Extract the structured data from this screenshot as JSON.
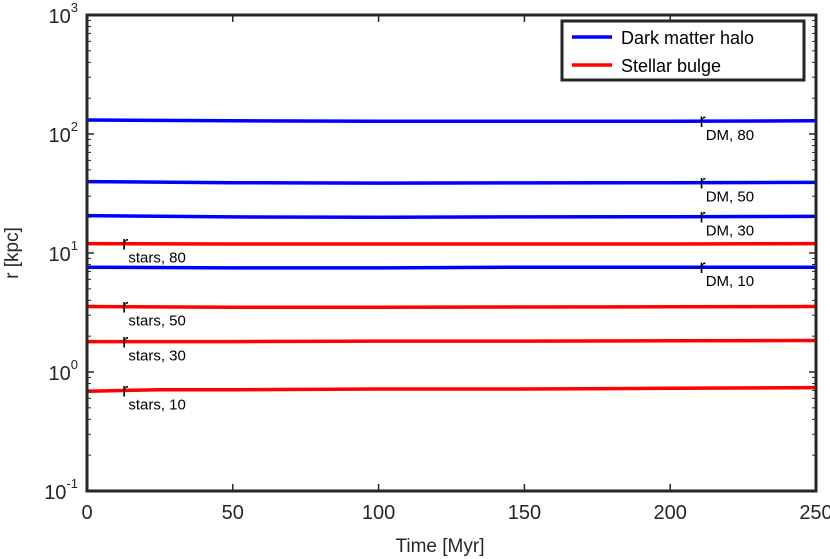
{
  "chart_data": {
    "type": "line",
    "xlabel": "Time [Myr]",
    "ylabel": "r [kpc]",
    "xlim": [
      0,
      250
    ],
    "ylim": [
      0.1,
      1000
    ],
    "yscale": "log",
    "grid": false,
    "legend_placement": "top-right",
    "x_ticks": [
      0,
      50,
      100,
      150,
      200,
      250
    ],
    "y_ticks": [
      {
        "base": "10",
        "exp": "-1",
        "value": 0.1
      },
      {
        "base": "10",
        "exp": "0",
        "value": 1
      },
      {
        "base": "10",
        "exp": "1",
        "value": 10
      },
      {
        "base": "10",
        "exp": "2",
        "value": 100
      },
      {
        "base": "10",
        "exp": "3",
        "value": 1000
      }
    ],
    "legend": [
      {
        "name": "Dark matter halo",
        "color": "#0000ff"
      },
      {
        "name": "Stellar bulge",
        "color": "#ff0000"
      }
    ],
    "series": [
      {
        "group": "Dark matter halo",
        "color": "#0000ff",
        "x": [
          0,
          50,
          100,
          150,
          200,
          250
        ],
        "y": [
          131,
          129,
          128,
          128,
          128,
          129
        ],
        "label": {
          "base": "r",
          "sub": "DM, 80",
          "x": 210
        }
      },
      {
        "group": "Dark matter halo",
        "color": "#0000ff",
        "x": [
          0,
          50,
          100,
          150,
          200,
          250
        ],
        "y": [
          39.8,
          39.0,
          38.7,
          38.8,
          39.0,
          39.2
        ],
        "label": {
          "base": "r",
          "sub": "DM, 50",
          "x": 210
        }
      },
      {
        "group": "Dark matter halo",
        "color": "#0000ff",
        "x": [
          0,
          50,
          100,
          150,
          200,
          250
        ],
        "y": [
          20.6,
          20.1,
          20.0,
          20.1,
          20.2,
          20.3
        ],
        "label": {
          "base": "r",
          "sub": "DM, 30",
          "x": 210
        }
      },
      {
        "group": "Dark matter halo",
        "color": "#0000ff",
        "x": [
          0,
          50,
          100,
          150,
          200,
          250
        ],
        "y": [
          7.6,
          7.5,
          7.5,
          7.6,
          7.6,
          7.6
        ],
        "label": {
          "base": "r",
          "sub": "DM, 10",
          "x": 210
        }
      },
      {
        "group": "Stellar bulge",
        "color": "#ff0000",
        "x": [
          0,
          50,
          100,
          150,
          200,
          250
        ],
        "y": [
          12.0,
          11.9,
          11.9,
          11.9,
          11.9,
          12.0
        ],
        "label": {
          "base": "r",
          "sub": "stars, 80",
          "x": 12
        }
      },
      {
        "group": "Stellar bulge",
        "color": "#ff0000",
        "x": [
          0,
          50,
          100,
          150,
          200,
          250
        ],
        "y": [
          3.55,
          3.5,
          3.5,
          3.52,
          3.53,
          3.55
        ],
        "label": {
          "base": "r",
          "sub": "stars, 50",
          "x": 12
        }
      },
      {
        "group": "Stellar bulge",
        "color": "#ff0000",
        "x": [
          0,
          50,
          100,
          150,
          200,
          250
        ],
        "y": [
          1.8,
          1.8,
          1.82,
          1.82,
          1.83,
          1.84
        ],
        "label": {
          "base": "r",
          "sub": "stars, 30",
          "x": 12
        }
      },
      {
        "group": "Stellar bulge",
        "color": "#ff0000",
        "x": [
          0,
          25,
          50,
          100,
          150,
          200,
          250
        ],
        "y": [
          0.69,
          0.71,
          0.71,
          0.72,
          0.72,
          0.73,
          0.74
        ],
        "label": {
          "base": "r",
          "sub": "stars, 10",
          "x": 12
        }
      }
    ]
  }
}
